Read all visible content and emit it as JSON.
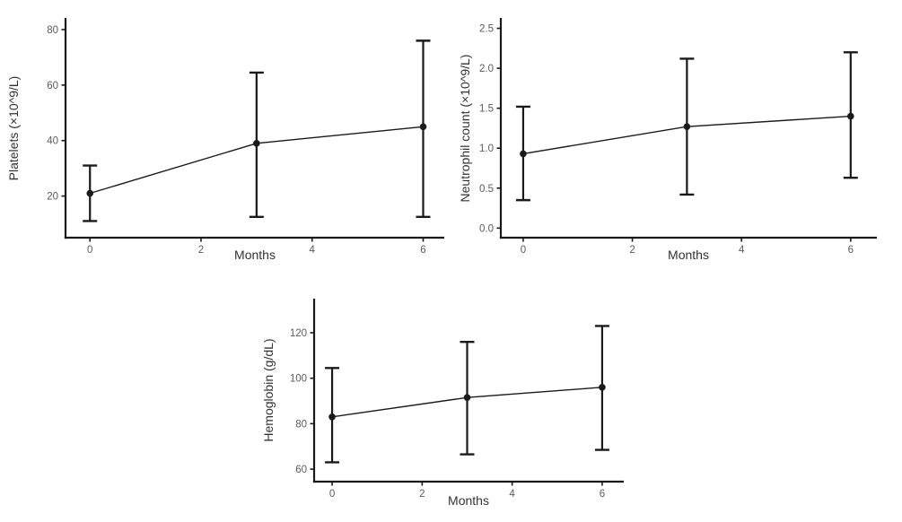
{
  "figure": {
    "background": "#ffffff",
    "axis_color": "#1a1a1a",
    "point_color": "#1a1a1a",
    "line_color": "#1a1a1a",
    "tick_label_color": "#5a5a5a",
    "axis_title_color": "#333333"
  },
  "chart_data": [
    {
      "id": "platelets",
      "type": "line",
      "title": "",
      "xlabel": "Months",
      "ylabel": "Platelets (×10^9/L)",
      "x": [
        0,
        3,
        6
      ],
      "series": [
        {
          "name": "mean",
          "values": [
            21,
            39,
            45
          ],
          "error_low": [
            11,
            12.5,
            12.5
          ],
          "error_high": [
            31,
            64.5,
            76
          ]
        }
      ],
      "xticks": {
        "values": [
          0,
          2,
          4,
          6
        ],
        "labels": [
          "0",
          "2",
          "4",
          "6"
        ]
      },
      "yticks": {
        "values": [
          20,
          40,
          60,
          80
        ],
        "labels": [
          "20",
          "40",
          "60",
          "80"
        ]
      },
      "xlim": [
        -0.44,
        6.38
      ],
      "ylim": [
        5,
        84.2
      ],
      "grid": false,
      "legend": "none"
    },
    {
      "id": "neutrophils",
      "type": "line",
      "title": "",
      "xlabel": "Months",
      "ylabel": "Neutrophil count (×10^9/L)",
      "x": [
        0,
        3,
        6
      ],
      "series": [
        {
          "name": "mean",
          "values": [
            0.93,
            1.27,
            1.4
          ],
          "error_low": [
            0.35,
            0.42,
            0.63
          ],
          "error_high": [
            1.52,
            2.12,
            2.2
          ]
        }
      ],
      "xticks": {
        "values": [
          0,
          2,
          4,
          6
        ],
        "labels": [
          "0",
          "2",
          "4",
          "6"
        ]
      },
      "yticks": {
        "values": [
          0,
          0.5,
          1,
          1.5,
          2,
          2.5
        ],
        "labels": [
          "0.0",
          "0.5",
          "1.0",
          "1.5",
          "2.0",
          "2.5"
        ]
      },
      "xlim": [
        -0.41,
        6.48
      ],
      "ylim": [
        -0.12,
        2.63
      ],
      "grid": false,
      "legend": "none"
    },
    {
      "id": "hemoglobin",
      "type": "line",
      "title": "",
      "xlabel": "Months",
      "ylabel": "Hemoglobin (g/dL)",
      "x": [
        0,
        3,
        6
      ],
      "series": [
        {
          "name": "mean",
          "values": [
            83,
            91.5,
            96
          ],
          "error_low": [
            63,
            66.5,
            68.5
          ],
          "error_high": [
            104.5,
            116,
            123
          ]
        }
      ],
      "xticks": {
        "values": [
          0,
          2,
          4,
          6
        ],
        "labels": [
          "0",
          "2",
          "4",
          "6"
        ]
      },
      "yticks": {
        "values": [
          60,
          80,
          100,
          120
        ],
        "labels": [
          "60",
          "80",
          "100",
          "120"
        ]
      },
      "xlim": [
        -0.4,
        6.48
      ],
      "ylim": [
        54.5,
        135
      ],
      "grid": false,
      "legend": "none"
    }
  ]
}
